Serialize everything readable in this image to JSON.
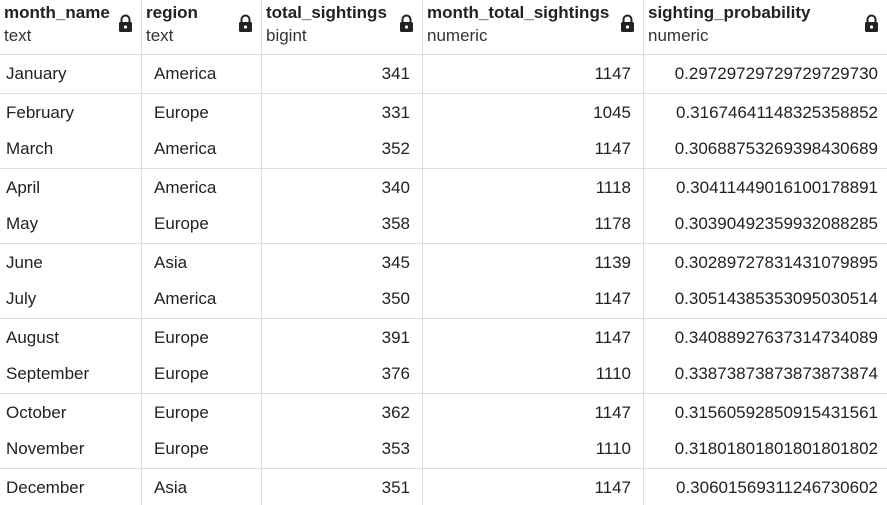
{
  "columns": [
    {
      "name": "month_name",
      "type": "text"
    },
    {
      "name": "region",
      "type": "text"
    },
    {
      "name": "total_sightings",
      "type": "bigint"
    },
    {
      "name": "month_total_sightings",
      "type": "numeric"
    },
    {
      "name": "sighting_probability",
      "type": "numeric"
    }
  ],
  "column_icon": "lock-icon",
  "rows": [
    [
      "January",
      "America",
      "341",
      "1147",
      "0.29729729729729729730"
    ],
    [
      "February",
      "Europe",
      "331",
      "1045",
      "0.31674641148325358852"
    ],
    [
      "March",
      "America",
      "352",
      "1147",
      "0.30688753269398430689"
    ],
    [
      "April",
      "America",
      "340",
      "1118",
      "0.30411449016100178891"
    ],
    [
      "May",
      "Europe",
      "358",
      "1178",
      "0.30390492359932088285"
    ],
    [
      "June",
      "Asia",
      "345",
      "1139",
      "0.30289727831431079895"
    ],
    [
      "July",
      "America",
      "350",
      "1147",
      "0.30514385353095030514"
    ],
    [
      "August",
      "Europe",
      "391",
      "1147",
      "0.34088927637314734089"
    ],
    [
      "September",
      "Europe",
      "376",
      "1110",
      "0.33873873873873873874"
    ],
    [
      "October",
      "Europe",
      "362",
      "1147",
      "0.31560592850915431561"
    ],
    [
      "November",
      "Europe",
      "353",
      "1110",
      "0.31801801801801801802"
    ],
    [
      "December",
      "Asia",
      "351",
      "1147",
      "0.30601569311246730602"
    ]
  ]
}
